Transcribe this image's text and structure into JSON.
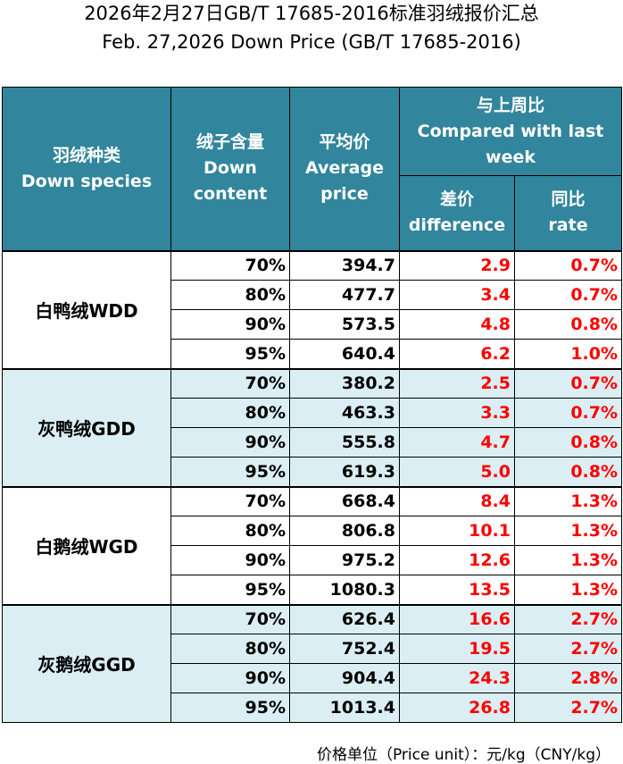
{
  "title_cn": "2026年2月27日GB/T 17685-2016标准羽绒报价汇总",
  "title_en": "Feb. 27,2026 Down Price (GB/T 17685-2016)",
  "headers": {
    "species_cn": "羽绒种类",
    "species_en": "Down species",
    "content_cn": "绒子含量",
    "content_en_1": "Down",
    "content_en_2": "content",
    "avg_cn": "平均价",
    "avg_en_1": "Average",
    "avg_en_2": "price",
    "compare_cn": "与上周比",
    "compare_en_1": "Compared with last",
    "compare_en_2": "week",
    "diff_cn": "差价",
    "diff_en": "difference",
    "rate_cn": "同比",
    "rate_en": "rate"
  },
  "groups": [
    {
      "species": "白鸭绒WDD",
      "rows": [
        {
          "content": "70%",
          "price": "394.7",
          "diff": "2.9",
          "rate": "0.7%"
        },
        {
          "content": "80%",
          "price": "477.7",
          "diff": "3.4",
          "rate": "0.7%"
        },
        {
          "content": "90%",
          "price": "573.5",
          "diff": "4.8",
          "rate": "0.8%"
        },
        {
          "content": "95%",
          "price": "640.4",
          "diff": "6.2",
          "rate": "1.0%"
        }
      ]
    },
    {
      "species": "灰鸭绒GDD",
      "rows": [
        {
          "content": "70%",
          "price": "380.2",
          "diff": "2.5",
          "rate": "0.7%"
        },
        {
          "content": "80%",
          "price": "463.3",
          "diff": "3.3",
          "rate": "0.7%"
        },
        {
          "content": "90%",
          "price": "555.8",
          "diff": "4.7",
          "rate": "0.8%"
        },
        {
          "content": "95%",
          "price": "619.3",
          "diff": "5.0",
          "rate": "0.8%"
        }
      ]
    },
    {
      "species": "白鹅绒WGD",
      "rows": [
        {
          "content": "70%",
          "price": "668.4",
          "diff": "8.4",
          "rate": "1.3%"
        },
        {
          "content": "80%",
          "price": "806.8",
          "diff": "10.1",
          "rate": "1.3%"
        },
        {
          "content": "90%",
          "price": "975.2",
          "diff": "12.6",
          "rate": "1.3%"
        },
        {
          "content": "95%",
          "price": "1080.3",
          "diff": "13.5",
          "rate": "1.3%"
        }
      ]
    },
    {
      "species": "灰鹅绒GGD",
      "rows": [
        {
          "content": "70%",
          "price": "626.4",
          "diff": "16.6",
          "rate": "2.7%"
        },
        {
          "content": "80%",
          "price": "752.4",
          "diff": "19.5",
          "rate": "2.7%"
        },
        {
          "content": "90%",
          "price": "904.4",
          "diff": "24.3",
          "rate": "2.8%"
        },
        {
          "content": "95%",
          "price": "1013.4",
          "diff": "26.8",
          "rate": "2.7%"
        }
      ]
    }
  ],
  "price_unit": "价格单位（Price unit）：元/kg（CNY/kg）",
  "colors": {
    "header_bg": "#31859c",
    "header_text": "#ffffff",
    "shade_bg": "#daeef3",
    "change_text": "#ff0000"
  }
}
